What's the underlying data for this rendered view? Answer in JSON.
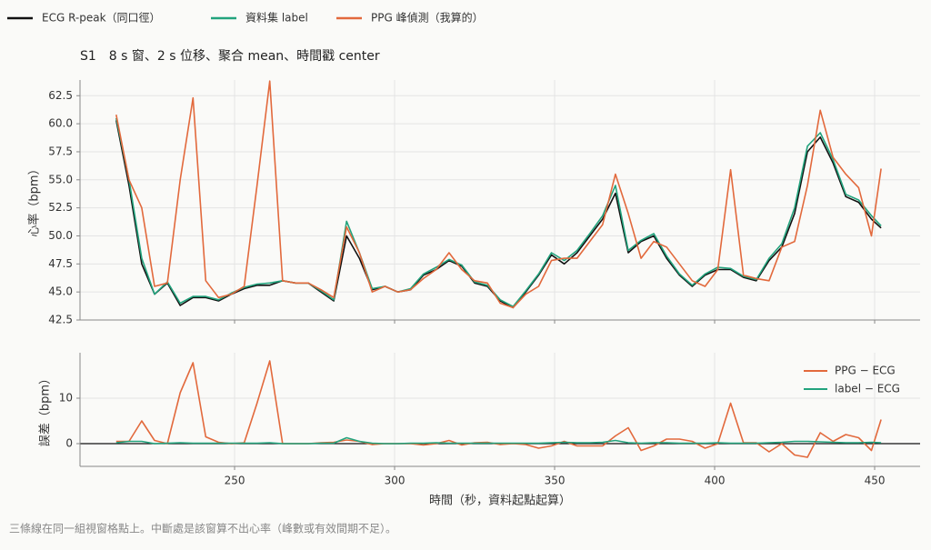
{
  "chart_data": [
    {
      "type": "line",
      "title": "S1　8 s 窗、2 s 位移、聚合 mean、時間戳 center",
      "ylabel": "心率（bpm）",
      "legend": "top",
      "x": [
        213,
        217,
        221,
        225,
        229,
        233,
        237,
        241,
        245,
        249,
        253,
        257,
        261,
        265,
        269,
        273,
        277,
        281,
        285,
        289,
        293,
        297,
        301,
        305,
        309,
        313,
        317,
        321,
        325,
        329,
        333,
        337,
        341,
        345,
        349,
        353,
        357,
        361,
        365,
        369,
        373,
        377,
        381,
        385,
        389,
        393,
        397,
        401,
        405,
        409,
        413,
        417,
        421,
        425,
        429,
        433,
        437,
        441,
        445,
        449,
        452
      ],
      "xlim": [
        201.7,
        464.2
      ],
      "xticks": [
        250,
        300,
        350,
        400,
        450
      ],
      "ylim": [
        42.5,
        63.9
      ],
      "yticks": [
        42.5,
        {
          "value": 45,
          "label": "45.0"
        },
        47.5,
        {
          "value": 50,
          "label": "50.0"
        },
        52.5,
        {
          "value": 55,
          "label": "55.0"
        },
        57.5,
        {
          "value": 60,
          "label": "60.0"
        },
        62.5
      ],
      "grid": true,
      "series": [
        {
          "name": "ECG R-peak（同口徑）",
          "color": "#111111",
          "values": [
            60.3,
            54.5,
            47.5,
            44.8,
            45.8,
            43.8,
            44.5,
            44.5,
            44.2,
            44.8,
            45.3,
            45.6,
            45.6,
            46.0,
            45.8,
            45.8,
            45.0,
            44.2,
            50.0,
            48.0,
            45.2,
            45.5,
            45.0,
            45.2,
            46.5,
            47.0,
            47.8,
            47.3,
            45.8,
            45.5,
            44.2,
            43.6,
            45.0,
            46.5,
            48.3,
            47.5,
            48.5,
            50.0,
            51.5,
            53.8,
            48.5,
            49.5,
            50.0,
            48.0,
            46.5,
            45.5,
            46.5,
            47.0,
            47.0,
            46.3,
            46.0,
            47.8,
            49.0,
            52.0,
            57.5,
            58.8,
            56.5,
            53.5,
            53.0,
            51.5,
            50.7
          ]
        },
        {
          "name": "資料集 label",
          "color": "#22a37d",
          "values": [
            60.5,
            55.0,
            48.0,
            44.8,
            45.9,
            44.0,
            44.6,
            44.6,
            44.3,
            44.9,
            45.4,
            45.7,
            45.8,
            46.0,
            45.8,
            45.8,
            45.1,
            44.3,
            51.3,
            48.5,
            45.3,
            45.5,
            45.0,
            45.3,
            46.6,
            47.2,
            47.9,
            47.4,
            45.9,
            45.6,
            44.3,
            43.7,
            45.1,
            46.6,
            48.5,
            47.8,
            48.7,
            50.2,
            51.8,
            54.5,
            48.7,
            49.6,
            50.2,
            48.2,
            46.6,
            45.6,
            46.6,
            47.2,
            47.1,
            46.4,
            46.1,
            48.0,
            49.3,
            52.5,
            58.0,
            59.2,
            56.8,
            53.7,
            53.2,
            51.8,
            50.9
          ]
        },
        {
          "name": "PPG 峰偵測（我算的）",
          "color": "#e2693c",
          "values": [
            60.8,
            55.0,
            52.5,
            45.5,
            45.8,
            55.0,
            62.3,
            46.0,
            44.5,
            44.8,
            45.5,
            54.5,
            63.8,
            46.0,
            45.8,
            45.8,
            45.2,
            44.5,
            50.8,
            48.5,
            45.0,
            45.5,
            45.0,
            45.2,
            46.2,
            47.0,
            48.5,
            47.0,
            46.0,
            45.8,
            44.0,
            43.6,
            44.8,
            45.5,
            47.8,
            48.0,
            48.0,
            49.5,
            51.0,
            55.5,
            52.0,
            48.0,
            49.5,
            49.0,
            47.5,
            46.0,
            45.5,
            47.0,
            55.9,
            46.5,
            46.2,
            46.0,
            49.0,
            49.5,
            54.5,
            61.2,
            57.0,
            55.5,
            54.3,
            50.0,
            56.0
          ]
        }
      ]
    },
    {
      "type": "line",
      "ylabel": "誤差（bpm）",
      "xlabel": "時間（秒，資料起點起算）",
      "legend": "upper right",
      "x": [
        213,
        217,
        221,
        225,
        229,
        233,
        237,
        241,
        245,
        249,
        253,
        257,
        261,
        265,
        269,
        273,
        277,
        281,
        285,
        289,
        293,
        297,
        301,
        305,
        309,
        313,
        317,
        321,
        325,
        329,
        333,
        337,
        341,
        345,
        349,
        353,
        357,
        361,
        365,
        369,
        373,
        377,
        381,
        385,
        389,
        393,
        397,
        401,
        405,
        409,
        413,
        417,
        421,
        425,
        429,
        433,
        437,
        441,
        445,
        449,
        452
      ],
      "xlim": [
        201.7,
        464.2
      ],
      "xticks": [
        250,
        300,
        350,
        400,
        450
      ],
      "ylim": [
        -5,
        20
      ],
      "yticks": [
        0,
        10
      ],
      "grid": true,
      "series": [
        {
          "name": "PPG − ECG",
          "color": "#e2693c",
          "values": [
            0.5,
            0.5,
            5.0,
            0.7,
            0.0,
            11.2,
            17.8,
            1.5,
            0.3,
            0.0,
            0.2,
            8.9,
            18.2,
            0.0,
            0.0,
            0.0,
            0.2,
            0.3,
            0.8,
            0.5,
            -0.2,
            0.0,
            0.0,
            0.0,
            -0.3,
            0.0,
            0.7,
            -0.3,
            0.2,
            0.3,
            -0.2,
            0.0,
            -0.2,
            -1.0,
            -0.5,
            0.5,
            -0.5,
            -0.5,
            -0.5,
            1.7,
            3.5,
            -1.5,
            -0.5,
            1.0,
            1.0,
            0.5,
            -1.0,
            0.0,
            8.9,
            0.2,
            0.2,
            -1.8,
            0.0,
            -2.5,
            -3.0,
            2.4,
            0.5,
            2.0,
            1.3,
            -1.5,
            5.3
          ]
        },
        {
          "name": "label − ECG",
          "color": "#22a37d",
          "values": [
            0.2,
            0.5,
            0.5,
            0.0,
            0.1,
            0.2,
            0.1,
            0.1,
            0.1,
            0.1,
            0.1,
            0.1,
            0.2,
            0.0,
            0.0,
            0.0,
            0.1,
            0.1,
            1.3,
            0.5,
            0.1,
            0.0,
            0.0,
            0.1,
            0.1,
            0.2,
            0.1,
            0.1,
            0.1,
            0.1,
            0.1,
            0.1,
            0.1,
            0.1,
            0.2,
            0.3,
            0.2,
            0.2,
            0.3,
            0.7,
            0.2,
            0.1,
            0.2,
            0.2,
            0.1,
            0.1,
            0.1,
            0.2,
            0.1,
            0.1,
            0.1,
            0.2,
            0.3,
            0.5,
            0.5,
            0.4,
            0.3,
            0.2,
            0.2,
            0.3,
            0.2
          ]
        }
      ]
    }
  ],
  "note": "三條線在同一組視窗格點上。中斷處是該窗算不出心率（峰數或有效間期不足）。"
}
